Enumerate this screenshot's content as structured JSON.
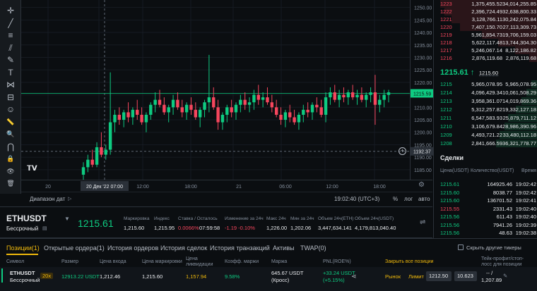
{
  "toolbar": {
    "icons": [
      "crosshair-icon",
      "trend-line-icon",
      "horizontal-lines-icon",
      "channel-icon",
      "brush-icon",
      "text-icon",
      "node-icon",
      "ruler-layout-icon",
      "emoji-icon",
      "ruler-icon",
      "zoom-icon",
      "magnet-icon",
      "lock-icon",
      "eye-icon",
      "trash-icon"
    ]
  },
  "chart": {
    "price_ticks": [
      "1250.00",
      "1245.00",
      "1240.00",
      "1235.00",
      "1230.00",
      "1225.00",
      "1220.00",
      "1215.00",
      "1210.00",
      "1205.00",
      "1200.00",
      "1195.00",
      "1190.00",
      "1185.00"
    ],
    "price_tick_values": [
      1250,
      1245,
      1240,
      1235,
      1230,
      1225,
      1220,
      1215,
      1210,
      1205,
      1200,
      1195,
      1190,
      1185
    ],
    "current_price_label": "1215.59",
    "crosshair_price_label": "1192.37",
    "time_ticks": [
      "20",
      "12:00",
      "18:00",
      "21",
      "06:00",
      "12:00",
      "18:00"
    ],
    "crosshair_time_label": "20 Дек '22   07:00",
    "range_button": "Диапазон дат",
    "clock": "19:02:40 (UTC+3)",
    "scale_percent": "%",
    "scale_log": "лог",
    "scale_auto": "авто",
    "colors": {
      "up": "#0ecb81",
      "down": "#f6465d",
      "last_price_line": "#0ecb81"
    },
    "candles": [
      {
        "o": 1183,
        "h": 1188,
        "l": 1181,
        "c": 1186
      },
      {
        "o": 1186,
        "h": 1191,
        "l": 1184,
        "c": 1189
      },
      {
        "o": 1189,
        "h": 1193,
        "l": 1186,
        "c": 1187
      },
      {
        "o": 1187,
        "h": 1196,
        "l": 1186,
        "c": 1194
      },
      {
        "o": 1194,
        "h": 1200,
        "l": 1190,
        "c": 1191
      },
      {
        "o": 1191,
        "h": 1195,
        "l": 1189,
        "c": 1193
      },
      {
        "o": 1193,
        "h": 1224,
        "l": 1191,
        "c": 1204
      },
      {
        "o": 1204,
        "h": 1209,
        "l": 1200,
        "c": 1207
      },
      {
        "o": 1207,
        "h": 1210,
        "l": 1203,
        "c": 1205
      },
      {
        "o": 1205,
        "h": 1209,
        "l": 1202,
        "c": 1208
      },
      {
        "o": 1208,
        "h": 1212,
        "l": 1204,
        "c": 1206
      },
      {
        "o": 1206,
        "h": 1210,
        "l": 1203,
        "c": 1209
      },
      {
        "o": 1209,
        "h": 1213,
        "l": 1205,
        "c": 1207
      },
      {
        "o": 1207,
        "h": 1210,
        "l": 1203,
        "c": 1204
      },
      {
        "o": 1204,
        "h": 1208,
        "l": 1200,
        "c": 1207
      },
      {
        "o": 1207,
        "h": 1212,
        "l": 1205,
        "c": 1211
      },
      {
        "o": 1211,
        "h": 1216,
        "l": 1208,
        "c": 1213
      },
      {
        "o": 1213,
        "h": 1217,
        "l": 1210,
        "c": 1211
      },
      {
        "o": 1211,
        "h": 1214,
        "l": 1207,
        "c": 1208
      },
      {
        "o": 1208,
        "h": 1211,
        "l": 1204,
        "c": 1210
      },
      {
        "o": 1210,
        "h": 1215,
        "l": 1207,
        "c": 1213
      },
      {
        "o": 1213,
        "h": 1216,
        "l": 1209,
        "c": 1210
      },
      {
        "o": 1210,
        "h": 1213,
        "l": 1206,
        "c": 1208
      },
      {
        "o": 1208,
        "h": 1212,
        "l": 1205,
        "c": 1211
      },
      {
        "o": 1211,
        "h": 1214,
        "l": 1207,
        "c": 1209
      },
      {
        "o": 1209,
        "h": 1212,
        "l": 1205,
        "c": 1206
      },
      {
        "o": 1206,
        "h": 1210,
        "l": 1202,
        "c": 1209
      },
      {
        "o": 1209,
        "h": 1213,
        "l": 1206,
        "c": 1212
      },
      {
        "o": 1212,
        "h": 1231,
        "l": 1208,
        "c": 1214
      },
      {
        "o": 1214,
        "h": 1218,
        "l": 1209,
        "c": 1210
      },
      {
        "o": 1210,
        "h": 1213,
        "l": 1201,
        "c": 1204
      },
      {
        "o": 1204,
        "h": 1208,
        "l": 1201,
        "c": 1207
      },
      {
        "o": 1207,
        "h": 1211,
        "l": 1204,
        "c": 1210
      },
      {
        "o": 1210,
        "h": 1213,
        "l": 1206,
        "c": 1208
      },
      {
        "o": 1208,
        "h": 1212,
        "l": 1205,
        "c": 1211
      },
      {
        "o": 1211,
        "h": 1215,
        "l": 1208,
        "c": 1213
      },
      {
        "o": 1213,
        "h": 1216,
        "l": 1209,
        "c": 1211
      },
      {
        "o": 1211,
        "h": 1214,
        "l": 1208,
        "c": 1212
      },
      {
        "o": 1212,
        "h": 1217,
        "l": 1209,
        "c": 1215
      },
      {
        "o": 1215,
        "h": 1219,
        "l": 1211,
        "c": 1213
      },
      {
        "o": 1213,
        "h": 1216,
        "l": 1210,
        "c": 1214
      },
      {
        "o": 1214,
        "h": 1218,
        "l": 1211,
        "c": 1212
      },
      {
        "o": 1212,
        "h": 1215,
        "l": 1208,
        "c": 1210
      },
      {
        "o": 1210,
        "h": 1213,
        "l": 1206,
        "c": 1207
      },
      {
        "o": 1207,
        "h": 1210,
        "l": 1203,
        "c": 1205
      },
      {
        "o": 1205,
        "h": 1209,
        "l": 1202,
        "c": 1208
      },
      {
        "o": 1208,
        "h": 1211,
        "l": 1204,
        "c": 1206
      },
      {
        "o": 1206,
        "h": 1209,
        "l": 1203,
        "c": 1204
      },
      {
        "o": 1204,
        "h": 1208,
        "l": 1201,
        "c": 1207
      },
      {
        "o": 1207,
        "h": 1211,
        "l": 1204,
        "c": 1209
      },
      {
        "o": 1209,
        "h": 1212,
        "l": 1206,
        "c": 1208
      },
      {
        "o": 1208,
        "h": 1212,
        "l": 1205,
        "c": 1211
      },
      {
        "o": 1211,
        "h": 1214,
        "l": 1208,
        "c": 1210
      },
      {
        "o": 1210,
        "h": 1213,
        "l": 1206,
        "c": 1207
      },
      {
        "o": 1207,
        "h": 1216,
        "l": 1204,
        "c": 1214
      },
      {
        "o": 1214,
        "h": 1218,
        "l": 1211,
        "c": 1216
      },
      {
        "o": 1216,
        "h": 1219,
        "l": 1212,
        "c": 1213
      },
      {
        "o": 1213,
        "h": 1217,
        "l": 1210,
        "c": 1215
      },
      {
        "o": 1215,
        "h": 1218,
        "l": 1212,
        "c": 1214
      },
      {
        "o": 1214,
        "h": 1217,
        "l": 1211,
        "c": 1216
      },
      {
        "o": 1216,
        "h": 1219,
        "l": 1213,
        "c": 1214
      },
      {
        "o": 1214,
        "h": 1217,
        "l": 1211,
        "c": 1215
      },
      {
        "o": 1215,
        "h": 1218,
        "l": 1212,
        "c": 1213
      },
      {
        "o": 1213,
        "h": 1216,
        "l": 1210,
        "c": 1215
      },
      {
        "o": 1215,
        "h": 1218,
        "l": 1212,
        "c": 1216
      },
      {
        "o": 1216,
        "h": 1223,
        "l": 1203,
        "c": 1211
      },
      {
        "o": 1211,
        "h": 1215,
        "l": 1208,
        "c": 1213
      },
      {
        "o": 1213,
        "h": 1217,
        "l": 1210,
        "c": 1215
      },
      {
        "o": 1215,
        "h": 1217,
        "l": 1212,
        "c": 1216
      }
    ]
  },
  "orderbook": {
    "asks": [
      {
        "price": "1223",
        "qty": "1,375,455.52",
        "total": "34,014,255.85"
      },
      {
        "price": "1222",
        "qty": "2,396,724.49",
        "total": "32,638,800.33"
      },
      {
        "price": "1221",
        "qty": "3,128,766.11",
        "total": "30,242,075.84"
      },
      {
        "price": "1220",
        "qty": "7,407,150.70",
        "total": "27,113,309.73"
      },
      {
        "price": "1219",
        "qty": "5,961,854.73",
        "total": "19,706,159.03"
      },
      {
        "price": "1218",
        "qty": "5,622,117.48",
        "total": "13,744,304.30"
      },
      {
        "price": "1217",
        "qty": "5,246,067.14",
        "total": "8,122,186.82"
      },
      {
        "price": "1216",
        "qty": "2,876,119.68",
        "total": "2,876,119.68"
      }
    ],
    "mid_price": "1215.61",
    "mid_arrow": "↑",
    "mid_mark": "1215.60",
    "bids": [
      {
        "price": "1215",
        "qty": "5,965,078.95",
        "total": "5,965,078.95"
      },
      {
        "price": "1214",
        "qty": "4,096,429.34",
        "total": "10,061,508.29"
      },
      {
        "price": "1213",
        "qty": "3,958,361.07",
        "total": "14,019,869.36"
      },
      {
        "price": "1212",
        "qty": "5,312,257.82",
        "total": "19,332,127.18"
      },
      {
        "price": "1211",
        "qty": "6,547,583.93",
        "total": "25,879,711.12"
      },
      {
        "price": "1210",
        "qty": "3,106,679.84",
        "total": "28,986,390.96"
      },
      {
        "price": "1209",
        "qty": "4,493,721.22",
        "total": "33,480,112.18"
      },
      {
        "price": "1208",
        "qty": "2,841,666.59",
        "total": "36,321,778.77"
      }
    ],
    "ask_depth_fractions": [
      0.94,
      0.9,
      0.83,
      0.75,
      0.54,
      0.38,
      0.22,
      0.08
    ],
    "bid_depth_fractions": [
      0.16,
      0.28,
      0.39,
      0.53,
      0.71,
      0.8,
      0.92,
      1.0
    ]
  },
  "trades": {
    "title": "Сделки",
    "headers": [
      "Цена(USDT)",
      "Количество(USDT)",
      "Время"
    ],
    "rows": [
      {
        "price": "1215.61",
        "qty": "164925.46",
        "time": "19:02:42",
        "side": "up"
      },
      {
        "price": "1215.60",
        "qty": "8038.77",
        "time": "19:02:42",
        "side": "up"
      },
      {
        "price": "1215.60",
        "qty": "136701.52",
        "time": "19:02:41",
        "side": "up"
      },
      {
        "price": "1215.55",
        "qty": "2331.43",
        "time": "19:02:40",
        "side": "down"
      },
      {
        "price": "1215.56",
        "qty": "611.43",
        "time": "19:02:40",
        "side": "up"
      },
      {
        "price": "1215.56",
        "qty": "7941.26",
        "time": "19:02:39",
        "side": "up"
      },
      {
        "price": "1215.56",
        "qty": "48.63",
        "time": "19:02:38",
        "side": "up"
      }
    ]
  },
  "ticker": {
    "symbol": "ETHUSDT",
    "contract": "Бессрочный",
    "last_price": "1215.61",
    "stats": [
      {
        "label": "Маркировка",
        "value": "1,215.60",
        "color": "#eaecef"
      },
      {
        "label": "Индекс",
        "value": "1,215.95",
        "color": "#eaecef"
      },
      {
        "label": "Ставка / Осталось",
        "value": "0.0066%",
        "value2": "07:59:58",
        "color": "#f6465d"
      },
      {
        "label": "Изменение за 24ч",
        "value": "-1.19 -0.10%",
        "color": "#f6465d"
      },
      {
        "label": "Макс 24ч",
        "value": "1,226.00",
        "color": "#eaecef"
      },
      {
        "label": "Мин за 24ч",
        "value": "1,202.06",
        "color": "#eaecef"
      },
      {
        "label": "Объем 24ч(ETH)",
        "value": "3,447,634.141",
        "color": "#eaecef"
      },
      {
        "label": "Объем 24ч(USDT)",
        "value": "4,179,813,040.40",
        "color": "#eaecef"
      }
    ]
  },
  "bottom": {
    "tabs": [
      "Позиции(1)",
      "Открытые ордера(1)",
      "История ордеров",
      "История сделок",
      "История транзакций",
      "Активы",
      "TWAP(0)"
    ],
    "hide_other": "Скрыть другие тикеры",
    "columns": [
      "Символ",
      "Размер",
      "Цена входа",
      "Цена маркировки",
      "Цена ликвидации",
      "Коэфф. маржи",
      "Маржа",
      "PNL(ROE%)",
      "Закрыть все позиции",
      "Тейк-профит/стоп-лосс для позиции"
    ],
    "position": {
      "symbol": "ETHUSDT",
      "contract": "Бессрочный",
      "leverage": "20x",
      "size": "12913.22 USDT",
      "entry": "1,212.46",
      "mark": "1,215.60",
      "liq": "1,157.94",
      "margin_ratio": "9.58%",
      "margin": "645.67 USDT",
      "margin_mode": "(Кросс)",
      "pnl": "+33.24 USDT",
      "roe": "(+5.15%)",
      "market": "Рынок",
      "limit": "Лимит",
      "limit_price": "1212.50",
      "limit_qty": "10.623",
      "tpsl": "-- /",
      "tpsl2": "1,207.89"
    }
  }
}
